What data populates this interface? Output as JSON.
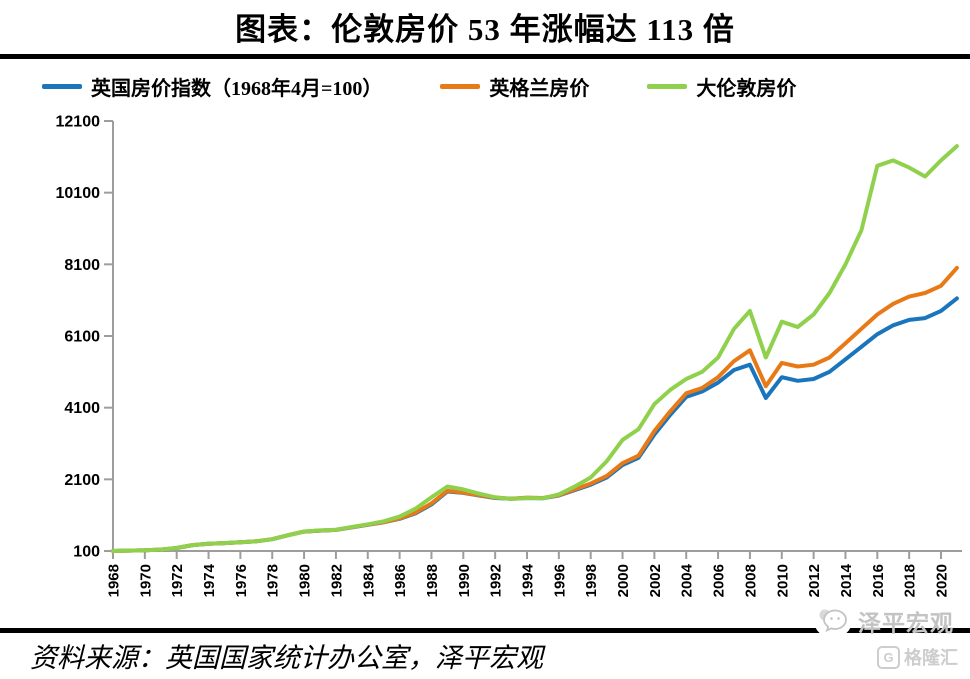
{
  "title": "图表：伦敦房价 53 年涨幅达 113 倍",
  "chart_data": {
    "type": "line",
    "x": [
      1968,
      1969,
      1970,
      1971,
      1972,
      1973,
      1974,
      1975,
      1976,
      1977,
      1978,
      1979,
      1980,
      1981,
      1982,
      1983,
      1984,
      1985,
      1986,
      1987,
      1988,
      1989,
      1990,
      1991,
      1992,
      1993,
      1994,
      1995,
      1996,
      1997,
      1998,
      1999,
      2000,
      2001,
      2002,
      2003,
      2004,
      2005,
      2006,
      2007,
      2008,
      2009,
      2010,
      2011,
      2012,
      2013,
      2014,
      2015,
      2016,
      2017,
      2018,
      2019,
      2020,
      2021
    ],
    "series": [
      {
        "name": "英国房价指数（1968年4月=100）",
        "color": "#1B75BC",
        "values": [
          100,
          110,
          120,
          140,
          185,
          265,
          300,
          320,
          345,
          370,
          430,
          540,
          640,
          670,
          690,
          760,
          830,
          900,
          1000,
          1150,
          1400,
          1760,
          1720,
          1650,
          1580,
          1560,
          1580,
          1570,
          1650,
          1800,
          1950,
          2150,
          2500,
          2700,
          3350,
          3900,
          4400,
          4550,
          4800,
          5150,
          5300,
          4370,
          4950,
          4850,
          4900,
          5100,
          5450,
          5800,
          6150,
          6400,
          6550,
          6600,
          6800,
          7150
        ]
      },
      {
        "name": "英格兰房价",
        "color": "#E87917",
        "values": [
          100,
          110,
          120,
          140,
          185,
          265,
          300,
          320,
          345,
          370,
          430,
          540,
          640,
          670,
          690,
          765,
          835,
          905,
          1010,
          1170,
          1430,
          1780,
          1730,
          1660,
          1590,
          1560,
          1590,
          1580,
          1660,
          1820,
          1980,
          2190,
          2550,
          2760,
          3450,
          4000,
          4500,
          4650,
          4950,
          5400,
          5700,
          4700,
          5350,
          5250,
          5300,
          5500,
          5900,
          6300,
          6700,
          7000,
          7200,
          7300,
          7500,
          8000
        ]
      },
      {
        "name": "大伦敦房价",
        "color": "#8FD04C",
        "values": [
          100,
          110,
          120,
          140,
          185,
          265,
          300,
          320,
          345,
          370,
          430,
          540,
          645,
          675,
          695,
          770,
          845,
          930,
          1060,
          1280,
          1600,
          1900,
          1820,
          1700,
          1600,
          1550,
          1580,
          1570,
          1680,
          1900,
          2150,
          2600,
          3200,
          3500,
          4200,
          4600,
          4900,
          5100,
          5500,
          6300,
          6800,
          5500,
          6500,
          6350,
          6700,
          7300,
          8100,
          9050,
          10850,
          11000,
          10800,
          10550,
          11000,
          11400
        ]
      }
    ],
    "ylim": [
      100,
      12100
    ],
    "yticks": [
      100,
      2100,
      4100,
      6100,
      8100,
      10100,
      12100
    ],
    "xticks": [
      1968,
      1970,
      1972,
      1974,
      1976,
      1978,
      1980,
      1982,
      1984,
      1986,
      1988,
      1990,
      1992,
      1994,
      1996,
      1998,
      2000,
      2002,
      2004,
      2006,
      2008,
      2010,
      2012,
      2014,
      2016,
      2018,
      2020
    ],
    "grid": false,
    "legend_position": "top",
    "axis_color": "#9D9D9D",
    "tick_label_color": "#000000"
  },
  "source_line": "资料来源：英国国家统计办公室，泽平宏观",
  "watermark": {
    "brand": "泽平宏观",
    "platform": "格隆汇",
    "logo_letter": "G",
    "color": "#c3c3c3",
    "platform_color": "#cdcdcd"
  }
}
